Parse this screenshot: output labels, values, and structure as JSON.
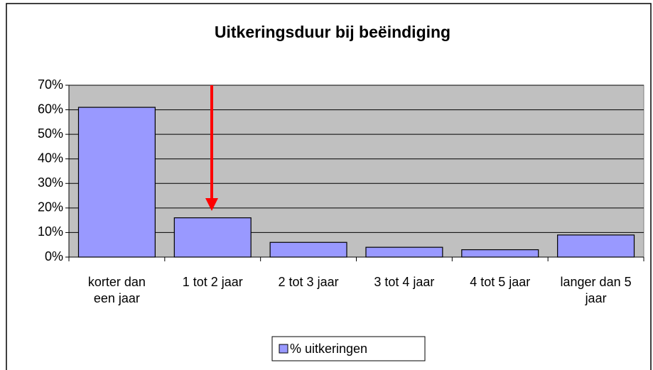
{
  "chart_data": {
    "type": "bar",
    "title": "Uitkeringsduur bij beëindiging",
    "categories": [
      "korter dan een jaar",
      "1 tot 2 jaar",
      "2 tot 3 jaar",
      "3 tot 4 jaar",
      "4 tot 5 jaar",
      "langer dan 5 jaar"
    ],
    "series": [
      {
        "name": "% uitkeringen",
        "color": "#9999ff",
        "values": [
          61,
          16,
          6,
          4,
          3,
          9
        ]
      }
    ],
    "ylim": [
      0,
      70
    ],
    "yticks": [
      {
        "value": 0,
        "label": "0%"
      },
      {
        "value": 10,
        "label": "10%"
      },
      {
        "value": 20,
        "label": "20%"
      },
      {
        "value": 30,
        "label": "30%"
      },
      {
        "value": 40,
        "label": "40%"
      },
      {
        "value": 50,
        "label": "50%"
      },
      {
        "value": 60,
        "label": "60%"
      },
      {
        "value": 70,
        "label": "70%"
      }
    ],
    "grid": true,
    "legend": "bottom"
  }
}
